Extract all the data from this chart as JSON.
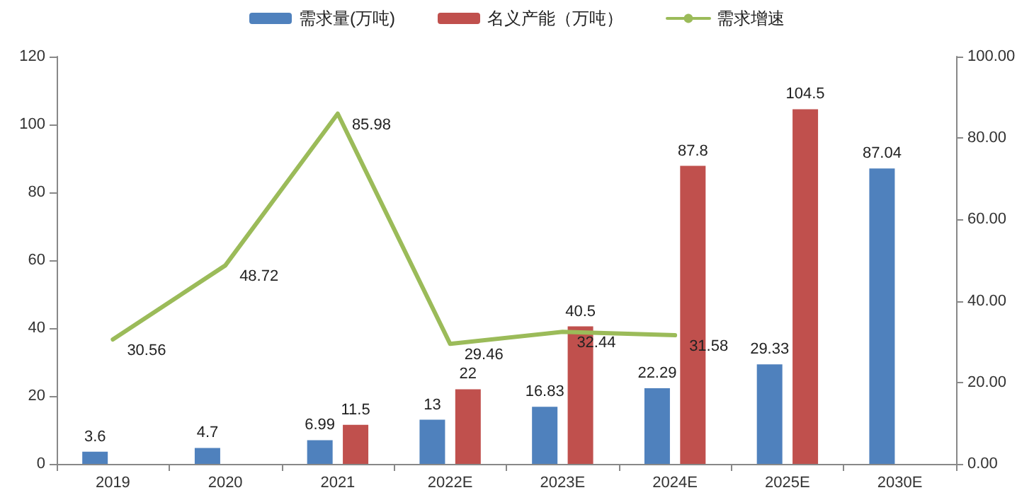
{
  "chart_data": {
    "type": "bar",
    "categories": [
      "2019",
      "2020",
      "2021",
      "2022E",
      "2023E",
      "2024E",
      "2025E",
      "2030E"
    ],
    "series": [
      {
        "name": "需求量(万吨)",
        "color": "#4f81bd",
        "values": [
          3.6,
          4.7,
          6.99,
          13,
          16.83,
          22.29,
          29.33,
          87.04
        ]
      },
      {
        "name": "名义产能（万吨）",
        "color": "#c0504d",
        "values": [
          null,
          null,
          11.5,
          22,
          40.5,
          87.8,
          104.5,
          null
        ]
      },
      {
        "name": "需求增速",
        "type": "line",
        "axis": "y2",
        "color": "#9bbb59",
        "values": [
          30.56,
          48.72,
          85.98,
          29.46,
          32.44,
          31.58,
          null,
          null
        ]
      }
    ],
    "ylim": [
      0,
      120
    ],
    "yticks": [
      0,
      20,
      40,
      60,
      80,
      100,
      120
    ],
    "y2lim": [
      0,
      100
    ],
    "y2ticks": [
      {
        "value": 0,
        "label": "0.00"
      },
      {
        "value": 20,
        "label": "20.00"
      },
      {
        "value": 40,
        "label": "40.00"
      },
      {
        "value": 60,
        "label": "60.00"
      },
      {
        "value": 80,
        "label": "80.00"
      },
      {
        "value": 100,
        "label": "100.00"
      }
    ],
    "data_labels": true,
    "legend": "top",
    "grid": false,
    "marker": "none",
    "line_style": "solid"
  }
}
